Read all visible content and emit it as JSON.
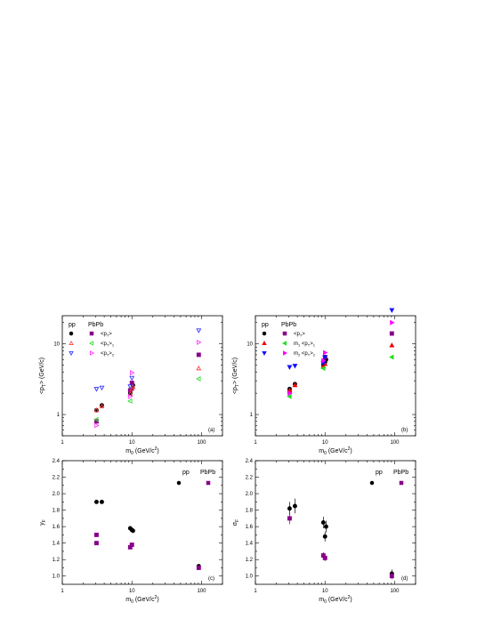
{
  "figure": {
    "panel_a": {
      "letter": "(a)",
      "ylabel_main": "<p",
      "ylabel_sub": "T",
      "ylabel_tail": "> (GeV/c)",
      "legend": {
        "pp": "pp",
        "pbpb": "PbPb",
        "row1": "<p",
        "row1_sub": "T",
        "row1_tail": ">",
        "row2_main": "<p",
        "row2_sub": "T",
        "row2_tail": ">",
        "row2_sub2": "1",
        "row3_main": "<p",
        "row3_sub": "T",
        "row3_tail": ">",
        "row3_sub2": "2"
      }
    },
    "panel_b": {
      "letter": "(b)",
      "ylabel_main": "<p",
      "ylabel_sub": "T",
      "ylabel_tail": "> (GeV/c)",
      "legend": {
        "pp": "pp",
        "pbpb": "PbPb",
        "row1": "<p",
        "row1_sub": "T",
        "row1_tail": ">",
        "row2_pre": "m",
        "row2_pre_sub": "1",
        "row2_main": "<p",
        "row2_sub": "T",
        "row2_tail": ">",
        "row2_sub2": "1",
        "row3_pre": "m",
        "row3_pre_sub": "2",
        "row3_main": "<p",
        "row3_sub": "T",
        "row3_tail": ">",
        "row3_sub2": "2"
      }
    },
    "panel_c": {
      "letter": "(c)",
      "ylabel_main": "y",
      "ylabel_sub": "F",
      "legend": {
        "pp": "pp",
        "pbpb": "PbPb"
      }
    },
    "panel_d": {
      "letter": "(d)",
      "ylabel_main": "σ",
      "ylabel_sub": "F",
      "legend": {
        "pp": "pp",
        "pbpb": "PbPb"
      }
    },
    "xlabel_main": "m",
    "xlabel_sub": "0",
    "xlabel_tail": " (GeV/c",
    "xlabel_sup": "2",
    "xlabel_close": ")"
  },
  "colors": {
    "pp": "#000000",
    "pbpb": "#880088",
    "open_red": "#ff4444",
    "open_green": "#33dd33",
    "open_blue": "#3333ff",
    "open_magenta": "#ff33ff",
    "red": "#ee0000",
    "green": "#22dd22",
    "blue": "#1111ff",
    "magenta": "#ff00ff"
  },
  "chart_data": [
    {
      "type": "scatter",
      "panel": "a",
      "xscale": "log",
      "yscale": "log",
      "xlim": [
        1,
        200
      ],
      "ylim": [
        0.5,
        25
      ],
      "xticks": [
        "1",
        "10",
        "100"
      ],
      "yticks": [
        "1",
        "10"
      ],
      "series": [
        {
          "name": "pp",
          "marker": "filled-circle",
          "x": [
            3.1,
            3.7,
            9.46,
            10.0,
            10.36
          ],
          "y": [
            1.15,
            1.35,
            2.0,
            2.3,
            2.6
          ]
        },
        {
          "name": "<pT>",
          "marker": "filled-square",
          "x": [
            3.1,
            9.46,
            10.0,
            91.2
          ],
          "y": [
            0.8,
            2.2,
            2.8,
            7.0
          ]
        },
        {
          "name": "<pT>1",
          "marker": "open-triangle-up",
          "x": [
            3.1,
            3.7,
            9.46,
            10.0,
            10.36,
            91.2
          ],
          "y": [
            1.15,
            1.3,
            1.95,
            2.3,
            2.45,
            4.5
          ]
        },
        {
          "name": "<pT>1",
          "marker": "open-triangle-left",
          "x": [
            3.1,
            9.46,
            91.2
          ],
          "y": [
            0.85,
            1.55,
            3.2
          ]
        },
        {
          "name": "<pT>2",
          "marker": "open-triangle-down",
          "x": [
            3.1,
            3.7,
            9.46,
            10.0,
            91.2
          ],
          "y": [
            2.3,
            2.4,
            2.5,
            3.3,
            15.5
          ]
        },
        {
          "name": "<pT>2",
          "marker": "open-triangle-right",
          "x": [
            3.1,
            9.46,
            10.0,
            91.2
          ],
          "y": [
            0.7,
            1.8,
            3.9,
            10.5
          ]
        }
      ]
    },
    {
      "type": "scatter",
      "panel": "b",
      "xscale": "log",
      "yscale": "log",
      "xlim": [
        1,
        200
      ],
      "ylim": [
        0.5,
        25
      ],
      "xticks": [
        "1",
        "10",
        "100"
      ],
      "yticks": [
        "1",
        "10"
      ],
      "series": [
        {
          "name": "pp",
          "marker": "filled-circle",
          "x": [
            3.1,
            3.7,
            9.46,
            10.0,
            10.36
          ],
          "y": [
            2.3,
            2.7,
            5.0,
            5.5,
            6.0
          ]
        },
        {
          "name": "<pT>",
          "marker": "filled-square",
          "x": [
            3.1,
            9.46,
            10.0,
            91.2
          ],
          "y": [
            2.1,
            5.5,
            6.5,
            14.0
          ]
        },
        {
          "name": "m1<pT>1",
          "marker": "filled-triangle-up",
          "x": [
            3.1,
            3.7,
            9.46,
            10.0,
            91.2
          ],
          "y": [
            2.2,
            2.6,
            4.8,
            5.2,
            9.5
          ]
        },
        {
          "name": "m1<pT>1",
          "marker": "filled-triangle-left",
          "x": [
            3.1,
            9.46,
            91.2
          ],
          "y": [
            1.8,
            4.5,
            6.5
          ]
        },
        {
          "name": "m2<pT>2",
          "marker": "filled-triangle-down",
          "x": [
            3.1,
            3.7,
            9.46,
            10.0,
            91.2
          ],
          "y": [
            4.7,
            4.9,
            5.3,
            6.5,
            30.0
          ]
        },
        {
          "name": "m2<pT>2",
          "marker": "filled-triangle-right",
          "x": [
            3.1,
            9.46,
            10.0,
            91.2
          ],
          "y": [
            2.0,
            5.8,
            7.5,
            20.0
          ]
        }
      ]
    },
    {
      "type": "scatter",
      "panel": "c",
      "xscale": "log",
      "xlim": [
        1,
        200
      ],
      "ylim": [
        0.9,
        2.4
      ],
      "xticks": [
        "1",
        "10",
        "100"
      ],
      "yticks": [
        "1.0",
        "1.2",
        "1.4",
        "1.6",
        "1.8",
        "2.0",
        "2.2",
        "2.4"
      ],
      "series": [
        {
          "name": "pp",
          "marker": "filled-circle",
          "x": [
            3.1,
            3.7,
            9.46,
            10.0,
            10.36,
            91.2
          ],
          "y": [
            1.9,
            1.9,
            1.58,
            1.56,
            1.55,
            1.12
          ],
          "err": [
            0.015,
            0.015,
            0.015,
            0.015,
            0.015,
            0.02
          ]
        },
        {
          "name": "PbPb",
          "marker": "filled-square",
          "x": [
            3.1,
            3.1,
            9.46,
            10.0,
            91.2
          ],
          "y": [
            1.5,
            1.4,
            1.35,
            1.38,
            1.1
          ],
          "err": [
            0.015,
            0.015,
            0.015,
            0.015,
            0.02
          ]
        }
      ]
    },
    {
      "type": "scatter",
      "panel": "d",
      "xscale": "log",
      "xlim": [
        1,
        200
      ],
      "ylim": [
        0.9,
        2.4
      ],
      "xticks": [
        "1",
        "10",
        "100"
      ],
      "yticks": [
        "1.0",
        "1.2",
        "1.4",
        "1.6",
        "1.8",
        "2.0",
        "2.2",
        "2.4"
      ],
      "series": [
        {
          "name": "pp",
          "marker": "filled-circle",
          "x": [
            3.1,
            3.7,
            9.46,
            10.0,
            10.36,
            91.2
          ],
          "y": [
            1.82,
            1.85,
            1.65,
            1.48,
            1.6,
            1.03
          ],
          "err": [
            0.08,
            0.09,
            0.07,
            0.06,
            0.07,
            0.05
          ]
        },
        {
          "name": "PbPb",
          "marker": "filled-square",
          "x": [
            3.1,
            9.46,
            10.0,
            91.2
          ],
          "y": [
            1.7,
            1.25,
            1.22,
            1.0
          ],
          "err": [
            0.07,
            0.04,
            0.04,
            0.04
          ]
        }
      ]
    }
  ]
}
